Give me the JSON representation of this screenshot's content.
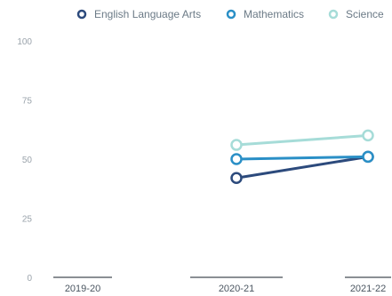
{
  "chart_data": {
    "type": "line",
    "title": "",
    "xlabel": "",
    "ylabel": "",
    "categories": [
      "2019-20",
      "2020-21",
      "2021-22"
    ],
    "ylim": [
      0,
      100
    ],
    "yticks": [
      "0",
      "25",
      "50",
      "75",
      "100"
    ],
    "grid": false,
    "legend_position": "top-right",
    "series": [
      {
        "name": "English Language Arts",
        "color": "#2c4a7c",
        "values": [
          null,
          42,
          51
        ]
      },
      {
        "name": "Mathematics",
        "color": "#2a8fc6",
        "values": [
          null,
          50,
          51
        ]
      },
      {
        "name": "Science",
        "color": "#a6dcd8",
        "values": [
          null,
          56,
          60
        ]
      }
    ]
  }
}
